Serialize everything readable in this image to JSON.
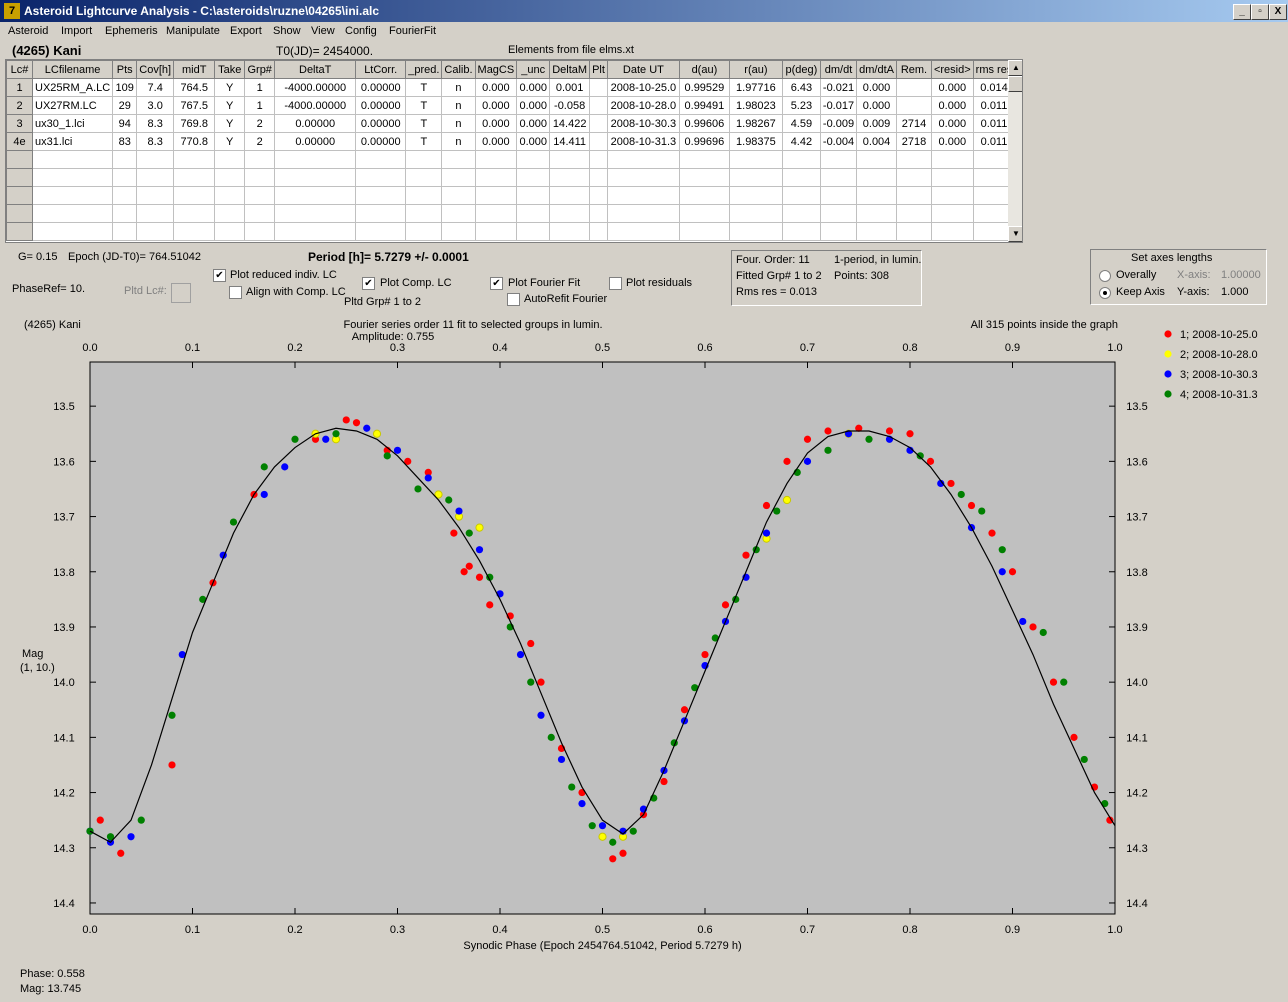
{
  "window": {
    "title": "Asteroid Lightcurve Analysis - C:\\asteroids\\ruzne\\04265\\ini.alc",
    "controls": [
      "_",
      "▫",
      "X"
    ]
  },
  "menu": [
    "Asteroid",
    "Import",
    "Ephemeris",
    "Manipulate",
    "Export",
    "Show",
    "View",
    "Config",
    "FourierFit"
  ],
  "header": {
    "asteroid": "(4265) Kani",
    "t0": "T0(JD)= 2454000.",
    "elements": "Elements from file elms.xt"
  },
  "table": {
    "columns": [
      "Lc#",
      "LCfilename",
      "Pts",
      "Cov[h]",
      "midT",
      "Take",
      "Grp#",
      "DeltaT",
      "LtCorr.",
      "_pred.",
      "Calib.",
      "MagCS",
      "_unc",
      "DeltaM",
      "Plt",
      "Date UT",
      "d(au)",
      "r(au)",
      "p(deg)",
      "dm/dt",
      "dm/dtA",
      "Rem.",
      "<resid>",
      "rms res"
    ],
    "rows": [
      [
        "1",
        "UX25RM_A.LC",
        "109",
        "7.4",
        "764.5",
        "Y",
        "1",
        "-4000.00000",
        "0.00000",
        "T",
        "n",
        "0.000",
        "0.000",
        "0.001",
        "",
        "2008-10-25.0",
        "0.99529",
        "1.97716",
        "6.43",
        "-0.021",
        "0.000",
        "",
        "0.000",
        "0.014"
      ],
      [
        "2",
        "UX27RM.LC",
        "29",
        "3.0",
        "767.5",
        "Y",
        "1",
        "-4000.00000",
        "0.00000",
        "T",
        "n",
        "0.000",
        "0.000",
        "-0.058",
        "",
        "2008-10-28.0",
        "0.99491",
        "1.98023",
        "5.23",
        "-0.017",
        "0.000",
        "",
        "0.000",
        "0.011"
      ],
      [
        "3",
        "ux30_1.lci",
        "94",
        "8.3",
        "769.8",
        "Y",
        "2",
        "0.00000",
        "0.00000",
        "T",
        "n",
        "0.000",
        "0.000",
        "14.422",
        "",
        "2008-10-30.3",
        "0.99606",
        "1.98267",
        "4.59",
        "-0.009",
        "0.009",
        "2714",
        "0.000",
        "0.011"
      ],
      [
        "4e",
        "ux31.lci",
        "83",
        "8.3",
        "770.8",
        "Y",
        "2",
        "0.00000",
        "0.00000",
        "T",
        "n",
        "0.000",
        "0.000",
        "14.411",
        "",
        "2008-10-31.3",
        "0.99696",
        "1.98375",
        "4.42",
        "-0.004",
        "0.004",
        "2718",
        "0.000",
        "0.011"
      ]
    ],
    "empty_rows": 5
  },
  "params": {
    "g": "G= 0.15",
    "epoch": "Epoch (JD-T0)= 764.51042",
    "period": "Period [h]= 5.7279 +/- 0.0001",
    "phaseref": "PhaseRef= 10.",
    "pltd_lc": "Pltd Lc#:",
    "pltd_grp": "Pltd Grp#  1   to   2"
  },
  "checks": {
    "plot_reduced": {
      "label": "Plot reduced indiv. LC",
      "checked": true
    },
    "align": {
      "label": "Align with Comp. LC",
      "checked": false
    },
    "plot_comp": {
      "label": "Plot Comp. LC",
      "checked": true
    },
    "plot_fourier": {
      "label": "Plot Fourier Fit",
      "checked": true
    },
    "plot_residuals": {
      "label": "Plot residuals",
      "checked": false
    },
    "autorefit": {
      "label": "AutoRefit Fourier",
      "checked": false
    }
  },
  "fourier": {
    "order": "Four. Order: 11",
    "mode": "1-period, in lumin.",
    "fitted": "Fitted Grp# 1 to 2",
    "points": "Points: 308",
    "rms": "Rms res     = 0.013"
  },
  "axes": {
    "title": "Set axes lengths",
    "overally": "Overally",
    "keep": "Keep Axis",
    "xaxis_label": "X-axis:",
    "xaxis_val": "1.00000",
    "yaxis_label": "Y-axis:",
    "yaxis_val": "1.000"
  },
  "status": {
    "phase": "Phase:  0.558",
    "mag": "Mag:    13.745"
  },
  "chart_data": {
    "type": "scatter",
    "title": "Fourier series order 11 fit to selected groups in lumin.",
    "subtitle": "Amplitude: 0.755",
    "top_left": "(4265) Kani",
    "top_right": "All 315 points inside the graph",
    "xlabel": "Synodic Phase (Epoch 2454764.51042, Period 5.7279 h)",
    "ylabel": [
      "Mag",
      "(1, 10.)"
    ],
    "xlim": [
      0,
      1
    ],
    "ylim": [
      14.42,
      13.42
    ],
    "y_inverted": true,
    "xticks": [
      "0.0",
      "0.1",
      "0.2",
      "0.3",
      "0.4",
      "0.5",
      "0.6",
      "0.7",
      "0.8",
      "0.9",
      "1.0"
    ],
    "yticks": [
      "13.5",
      "13.6",
      "13.7",
      "13.8",
      "13.9",
      "14.0",
      "14.1",
      "14.2",
      "14.3",
      "14.4"
    ],
    "legend_position": "right",
    "colors": {
      "fit": "#000000",
      "plot_bg": "#c0c0c0"
    },
    "fit_curve": {
      "x": [
        0.0,
        0.02,
        0.04,
        0.06,
        0.08,
        0.1,
        0.12,
        0.14,
        0.16,
        0.18,
        0.2,
        0.22,
        0.24,
        0.26,
        0.28,
        0.3,
        0.32,
        0.34,
        0.36,
        0.38,
        0.4,
        0.42,
        0.44,
        0.46,
        0.48,
        0.5,
        0.52,
        0.54,
        0.56,
        0.58,
        0.6,
        0.62,
        0.64,
        0.66,
        0.68,
        0.7,
        0.72,
        0.74,
        0.76,
        0.78,
        0.8,
        0.82,
        0.84,
        0.86,
        0.88,
        0.9,
        0.92,
        0.94,
        0.96,
        0.98,
        1.0
      ],
      "y": [
        14.27,
        14.29,
        14.25,
        14.15,
        14.03,
        13.91,
        13.82,
        13.73,
        13.66,
        13.61,
        13.575,
        13.55,
        13.54,
        13.545,
        13.56,
        13.59,
        13.63,
        13.67,
        13.72,
        13.78,
        13.85,
        13.93,
        14.02,
        14.11,
        14.19,
        14.25,
        14.275,
        14.24,
        14.16,
        14.07,
        13.98,
        13.89,
        13.8,
        13.71,
        13.64,
        13.585,
        13.555,
        13.545,
        13.545,
        13.555,
        13.575,
        13.61,
        13.66,
        13.72,
        13.79,
        13.87,
        13.95,
        14.04,
        14.12,
        14.2,
        14.26
      ]
    },
    "series": [
      {
        "name": "1; 2008-10-25.0",
        "color": "#ff0000",
        "x": [
          0.01,
          0.03,
          0.08,
          0.12,
          0.16,
          0.22,
          0.25,
          0.26,
          0.29,
          0.31,
          0.33,
          0.355,
          0.365,
          0.37,
          0.38,
          0.39,
          0.41,
          0.43,
          0.44,
          0.46,
          0.48,
          0.5,
          0.51,
          0.52,
          0.54,
          0.56,
          0.58,
          0.6,
          0.62,
          0.64,
          0.66,
          0.68,
          0.7,
          0.72,
          0.75,
          0.78,
          0.8,
          0.82,
          0.84,
          0.86,
          0.88,
          0.9,
          0.92,
          0.94,
          0.96,
          0.98,
          0.995
        ],
        "y": [
          14.25,
          14.31,
          14.15,
          13.82,
          13.66,
          13.56,
          13.525,
          13.53,
          13.58,
          13.6,
          13.62,
          13.73,
          13.8,
          13.79,
          13.81,
          13.86,
          13.88,
          13.93,
          14.0,
          14.12,
          14.2,
          14.28,
          14.32,
          14.31,
          14.24,
          14.18,
          14.05,
          13.95,
          13.86,
          13.77,
          13.68,
          13.6,
          13.56,
          13.545,
          13.54,
          13.545,
          13.55,
          13.6,
          13.64,
          13.68,
          13.73,
          13.8,
          13.9,
          14.0,
          14.1,
          14.19,
          14.25
        ]
      },
      {
        "name": "2; 2008-10-28.0",
        "color": "#ffff00",
        "x": [
          0.22,
          0.24,
          0.28,
          0.34,
          0.36,
          0.38,
          0.5,
          0.52,
          0.66,
          0.68,
          0.74
        ],
        "y": [
          13.55,
          13.56,
          13.55,
          13.66,
          13.7,
          13.72,
          14.28,
          14.28,
          13.74,
          13.67,
          13.55
        ]
      },
      {
        "name": "3; 2008-10-30.3",
        "color": "#0000ff",
        "x": [
          0.0,
          0.02,
          0.04,
          0.09,
          0.13,
          0.17,
          0.19,
          0.23,
          0.27,
          0.3,
          0.33,
          0.36,
          0.38,
          0.4,
          0.42,
          0.44,
          0.46,
          0.48,
          0.5,
          0.52,
          0.54,
          0.56,
          0.58,
          0.6,
          0.62,
          0.64,
          0.66,
          0.7,
          0.74,
          0.78,
          0.8,
          0.83,
          0.86,
          0.89,
          0.91
        ],
        "y": [
          14.27,
          14.29,
          14.28,
          13.95,
          13.77,
          13.66,
          13.61,
          13.56,
          13.54,
          13.58,
          13.63,
          13.69,
          13.76,
          13.84,
          13.95,
          14.06,
          14.14,
          14.22,
          14.26,
          14.27,
          14.23,
          14.16,
          14.07,
          13.97,
          13.89,
          13.81,
          13.73,
          13.6,
          13.55,
          13.56,
          13.58,
          13.64,
          13.72,
          13.8,
          13.89
        ]
      },
      {
        "name": "4; 2008-10-31.3",
        "color": "#008000",
        "x": [
          0.0,
          0.02,
          0.05,
          0.08,
          0.11,
          0.14,
          0.17,
          0.2,
          0.24,
          0.29,
          0.32,
          0.35,
          0.37,
          0.39,
          0.41,
          0.43,
          0.45,
          0.47,
          0.49,
          0.51,
          0.53,
          0.55,
          0.57,
          0.59,
          0.61,
          0.63,
          0.65,
          0.67,
          0.69,
          0.72,
          0.76,
          0.81,
          0.85,
          0.87,
          0.89,
          0.93,
          0.95,
          0.97,
          0.99
        ],
        "y": [
          14.27,
          14.28,
          14.25,
          14.06,
          13.85,
          13.71,
          13.61,
          13.56,
          13.55,
          13.59,
          13.65,
          13.67,
          13.73,
          13.81,
          13.9,
          14.0,
          14.1,
          14.19,
          14.26,
          14.29,
          14.27,
          14.21,
          14.11,
          14.01,
          13.92,
          13.85,
          13.76,
          13.69,
          13.62,
          13.58,
          13.56,
          13.59,
          13.66,
          13.69,
          13.76,
          13.91,
          14.0,
          14.14,
          14.22
        ]
      }
    ]
  }
}
